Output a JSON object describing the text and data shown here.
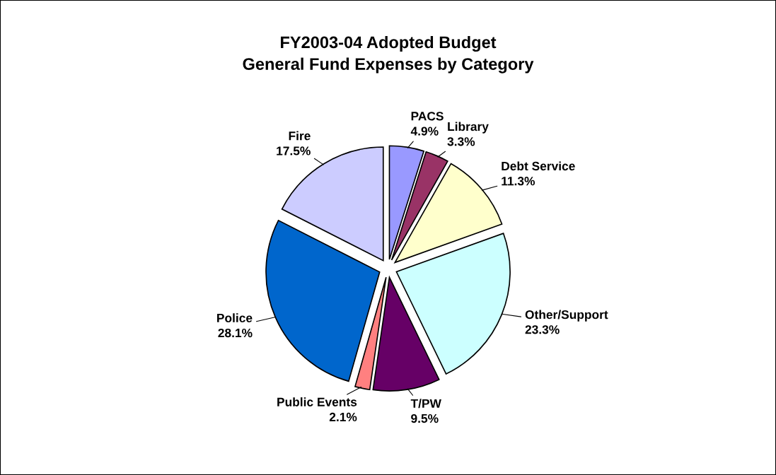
{
  "chart_data": {
    "type": "pie",
    "title": "FY2003-04 Adopted Budget\nGeneral Fund Expenses by Category",
    "categories": [
      "PACS",
      "Library",
      "Debt Service",
      "Other/Support",
      "T/PW",
      "Public Events",
      "Police",
      "Fire"
    ],
    "values": [
      4.9,
      3.3,
      11.3,
      23.3,
      9.5,
      2.1,
      28.1,
      17.5
    ],
    "value_labels": [
      "4.9%",
      "3.3%",
      "11.3%",
      "23.3%",
      "9.5%",
      "2.1%",
      "28.1%",
      "17.5%"
    ],
    "colors": [
      "#9999ff",
      "#993366",
      "#ffffcc",
      "#ccffff",
      "#660066",
      "#ff8080",
      "#0066cc",
      "#ccccff"
    ]
  }
}
